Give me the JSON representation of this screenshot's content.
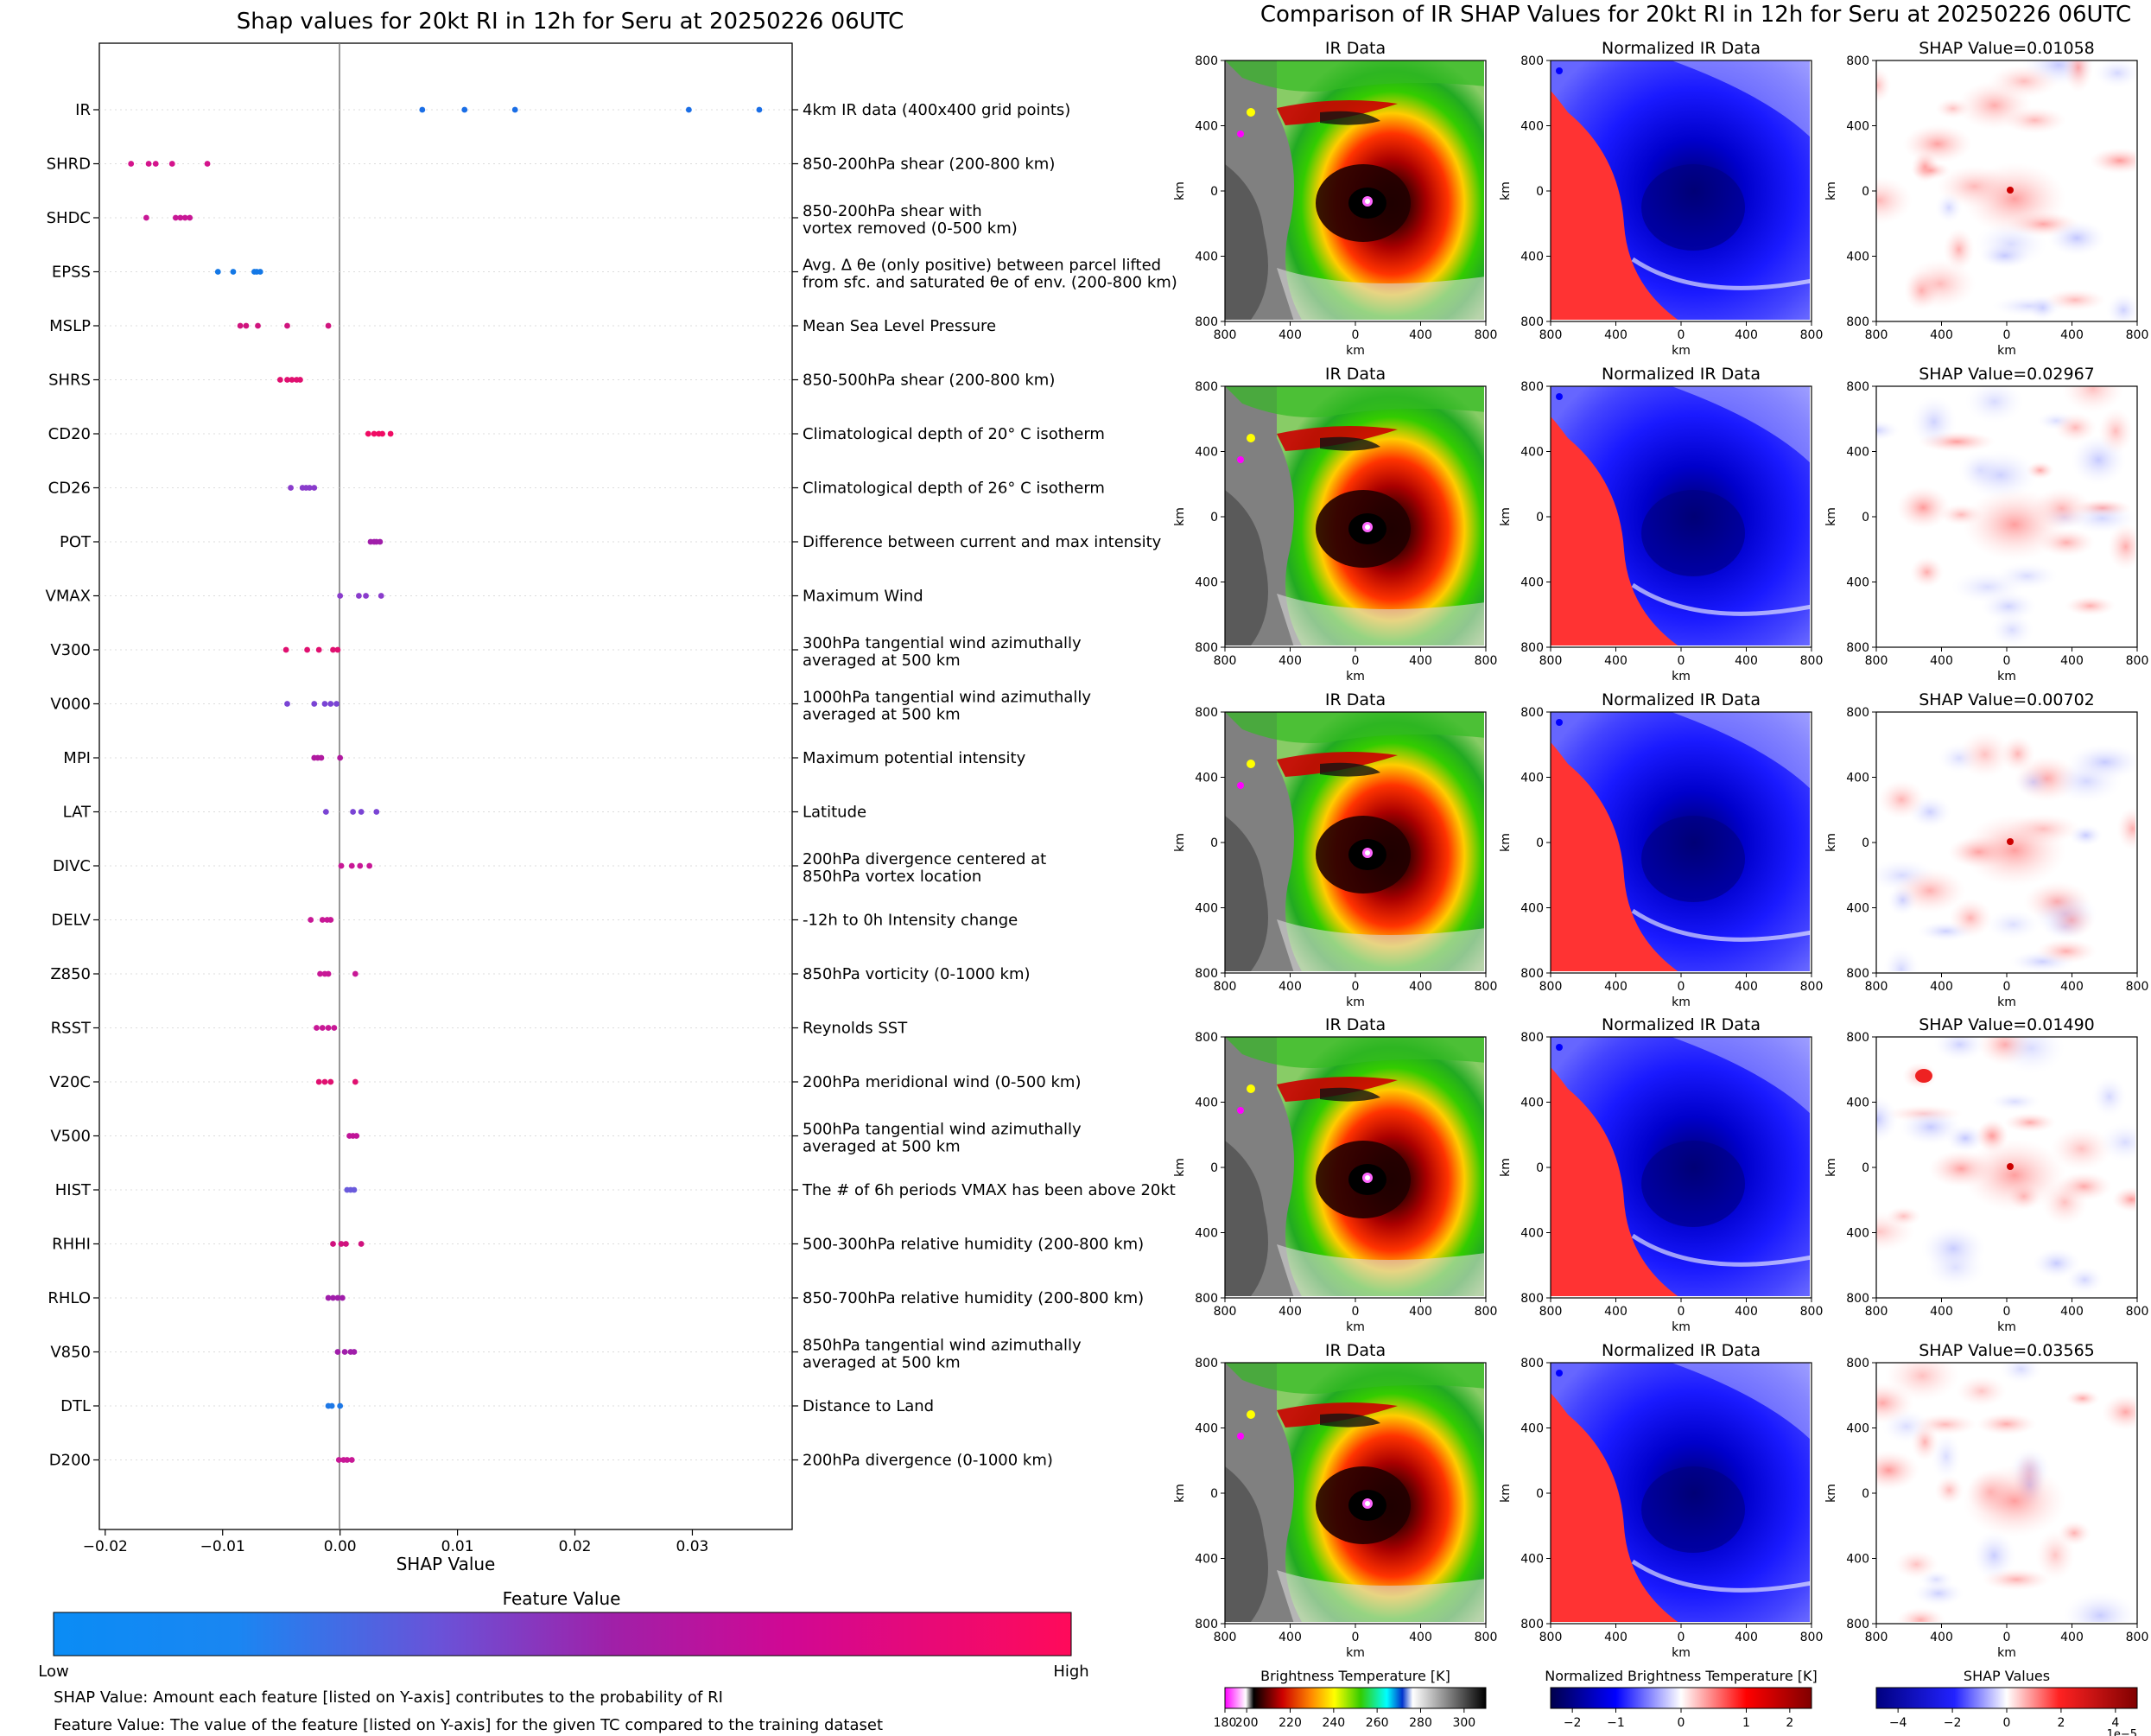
{
  "left": {
    "title": "Shap values for 20kt RI in 12h for Seru at 20250226 06UTC",
    "xlabel": "SHAP Value",
    "colorbar_title": "Feature Value",
    "colorbar_low": "Low",
    "colorbar_high": "High",
    "note1": "SHAP Value: Amount each feature [listed on Y-axis] contributes to the probability of RI",
    "note2": "Feature Value: The value of the feature [listed on Y-axis] for the given TC compared to the training dataset"
  },
  "right": {
    "title": "Comparison of IR SHAP Values for 20kt RI in 12h for Seru at 20250226 06UTC",
    "col_titles": [
      "IR Data",
      "Normalized IR Data"
    ],
    "shap_titles": [
      "SHAP Value=0.01058",
      "SHAP Value=0.02967",
      "SHAP Value=0.00702",
      "SHAP Value=0.01490",
      "SHAP Value=0.03565"
    ],
    "axis_label": "km",
    "ticks": [
      "800",
      "400",
      "0",
      "400",
      "800"
    ],
    "colorbars": [
      {
        "title": "Brightness Temperature [K]",
        "ticks": [
          "180",
          "200",
          "220",
          "240",
          "260",
          "280",
          "300"
        ]
      },
      {
        "title": "Normalized Brightness Temperature [K]",
        "ticks": [
          "−2",
          "−1",
          "0",
          "1",
          "2"
        ]
      },
      {
        "title": "SHAP Values",
        "ticks": [
          "−4",
          "−2",
          "0",
          "2",
          "4"
        ],
        "offset": "1e−5"
      }
    ]
  },
  "chart_data": [
    {
      "type": "scatter",
      "title": "Shap values for 20kt RI in 12h for Seru at 20250226 06UTC",
      "xlabel": "SHAP Value",
      "xlim": [
        -0.0205,
        0.0385
      ],
      "xticks": [
        "−0.02",
        "−0.01",
        "0.00",
        "0.01",
        "0.02",
        "0.03"
      ],
      "grid": "horizontal dotted per feature",
      "colormap": [
        "#0a8cf5",
        "#8a3cc8",
        "#ff0a5a"
      ],
      "features": [
        {
          "name": "IR",
          "desc": "4km IR data (400x400 grid points)",
          "color": "#1a6ee6",
          "values": [
            0.007,
            0.0106,
            0.0149,
            0.0297,
            0.0357
          ]
        },
        {
          "name": "SHRD",
          "desc": "850-200hPa shear (200-800 km)",
          "color": "#d4148c",
          "values": [
            -0.0178,
            -0.0163,
            -0.0157,
            -0.0143,
            -0.0113
          ]
        },
        {
          "name": "SHDC",
          "desc": "850-200hPa shear with\nvortex removed (0-500 km)",
          "color": "#c81896",
          "values": [
            -0.0165,
            -0.014,
            -0.0136,
            -0.0132,
            -0.0128
          ]
        },
        {
          "name": "EPSS",
          "desc": "Avg. Δ θe (only positive) between parcel lifted\nfrom sfc. and saturated θe of env. (200-800 km)",
          "color": "#1478e6",
          "values": [
            -0.0104,
            -0.0091,
            -0.0073,
            -0.0071,
            -0.0068
          ]
        },
        {
          "name": "MSLP",
          "desc": "Mean Sea Level Pressure",
          "color": "#d0147e",
          "values": [
            -0.0085,
            -0.008,
            -0.007,
            -0.0045,
            -0.001
          ]
        },
        {
          "name": "SHRS",
          "desc": "850-500hPa shear (200-800 km)",
          "color": "#e01070",
          "values": [
            -0.0051,
            -0.0045,
            -0.0041,
            -0.0037,
            -0.0034
          ]
        },
        {
          "name": "CD20",
          "desc": "Climatological depth of 20° C isotherm",
          "color": "#f00c64",
          "values": [
            0.0024,
            0.0029,
            0.0033,
            0.0036,
            0.0043
          ]
        },
        {
          "name": "CD26",
          "desc": "Climatological depth of 26° C isotherm",
          "color": "#8a3ccc",
          "values": [
            -0.0042,
            -0.0032,
            -0.0029,
            -0.0026,
            -0.0022
          ]
        },
        {
          "name": "POT",
          "desc": "Difference between current and max intensity",
          "color": "#a01eaa",
          "values": [
            0.0026,
            0.0029,
            0.0031,
            0.0034
          ]
        },
        {
          "name": "VMAX",
          "desc": "Maximum Wind",
          "color": "#8a3ccc",
          "values": [
            0.0,
            0.0016,
            0.0022,
            0.0035
          ]
        },
        {
          "name": "V300",
          "desc": "300hPa tangential wind azimuthally\naveraged at 500 km",
          "color": "#e01070",
          "values": [
            -0.0046,
            -0.0028,
            -0.0018,
            -0.0006,
            -0.0002
          ]
        },
        {
          "name": "V000",
          "desc": "1000hPa tangential wind azimuthally\naveraged at 500 km",
          "color": "#7a44d4",
          "values": [
            -0.0045,
            -0.0022,
            -0.0013,
            -0.0008,
            -0.0003
          ]
        },
        {
          "name": "MPI",
          "desc": "Maximum potential intensity",
          "color": "#b01aa0",
          "values": [
            -0.0022,
            -0.0019,
            -0.0016,
            0.0
          ]
        },
        {
          "name": "LAT",
          "desc": "Latitude",
          "color": "#7a44d4",
          "values": [
            -0.0012,
            0.0011,
            0.0018,
            0.0031
          ]
        },
        {
          "name": "DIVC",
          "desc": "200hPa divergence centered at\n850hPa vortex location",
          "color": "#c81896",
          "values": [
            0.0001,
            0.001,
            0.0017,
            0.0025
          ]
        },
        {
          "name": "DELV",
          "desc": "-12h to 0h Intensity change",
          "color": "#c81896",
          "values": [
            -0.0025,
            -0.0015,
            -0.0011,
            -0.0008
          ]
        },
        {
          "name": "Z850",
          "desc": "850hPa vorticity (0-1000 km)",
          "color": "#c81896",
          "values": [
            -0.0017,
            -0.0013,
            -0.001,
            0.0013
          ]
        },
        {
          "name": "RSST",
          "desc": "Reynolds SST",
          "color": "#c81896",
          "values": [
            -0.002,
            -0.0015,
            -0.001,
            -0.0005
          ]
        },
        {
          "name": "V20C",
          "desc": "200hPa meridional wind (0-500 km)",
          "color": "#e01070",
          "values": [
            -0.0018,
            -0.0013,
            -0.0008,
            0.0013
          ]
        },
        {
          "name": "V500",
          "desc": "500hPa tangential wind azimuthally\naveraged at 500 km",
          "color": "#c01498",
          "values": [
            0.0008,
            0.0011,
            0.0014
          ]
        },
        {
          "name": "HIST",
          "desc": "The # of 6h periods VMAX has been above 20kt",
          "color": "#6a5adc",
          "values": [
            0.0006,
            0.0009,
            0.0012
          ]
        },
        {
          "name": "RHHI",
          "desc": "500-300hPa relative humidity (200-800 km)",
          "color": "#d0127e",
          "values": [
            -0.0006,
            0.0001,
            0.0005,
            0.0018
          ]
        },
        {
          "name": "RHLO",
          "desc": "850-700hPa relative humidity (200-800 km)",
          "color": "#a01eaa",
          "values": [
            -0.001,
            -0.0006,
            -0.0002,
            0.0002
          ]
        },
        {
          "name": "V850",
          "desc": "850hPa tangential wind azimuthally\naveraged at 500 km",
          "color": "#a01eaa",
          "values": [
            -0.0002,
            0.0004,
            0.0009,
            0.0012
          ]
        },
        {
          "name": "DTL",
          "desc": "Distance to Land",
          "color": "#1e78e6",
          "values": [
            -0.001,
            -0.0007,
            0.0
          ]
        },
        {
          "name": "D200",
          "desc": "200hPa divergence (0-1000 km)",
          "color": "#c81896",
          "values": [
            -0.0001,
            0.0003,
            0.0006,
            0.001
          ]
        }
      ]
    },
    {
      "type": "heatmap",
      "title": "Comparison of IR SHAP Values for 20kt RI in 12h for Seru at 20250226 06UTC",
      "panels": 15,
      "xlim_km": [
        -800,
        800
      ],
      "ylim_km": [
        -800,
        800
      ],
      "shap_values": [
        0.01058,
        0.02967,
        0.00702,
        0.0149,
        0.03565
      ]
    }
  ]
}
